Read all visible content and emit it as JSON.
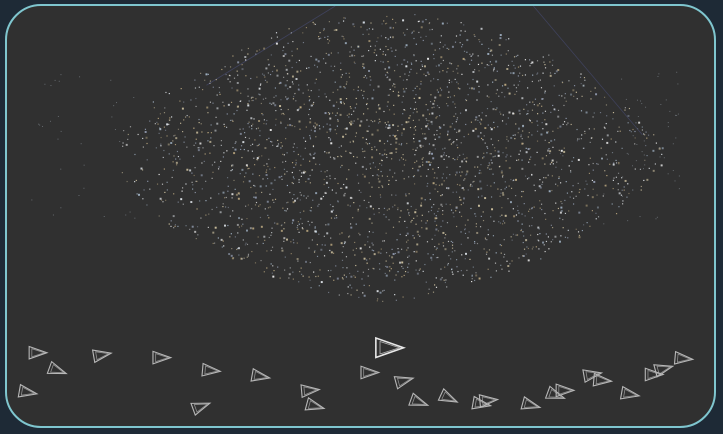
{
  "scene": {
    "type": "3d-point-cloud-reconstruction",
    "background_color": "#303030",
    "border_color": "#7fc6cf",
    "outer_background_color": "#1e2a36",
    "point_colors": [
      "#d8dde2",
      "#c9bd9c",
      "#9fb0c2",
      "#b8a57e",
      "#e6e6e6",
      "#8c95a8"
    ],
    "camera_color": "#b8b8b8",
    "highlight_camera_color": "#e8e8e8",
    "camera_icon": "camera-frustum-icon"
  }
}
